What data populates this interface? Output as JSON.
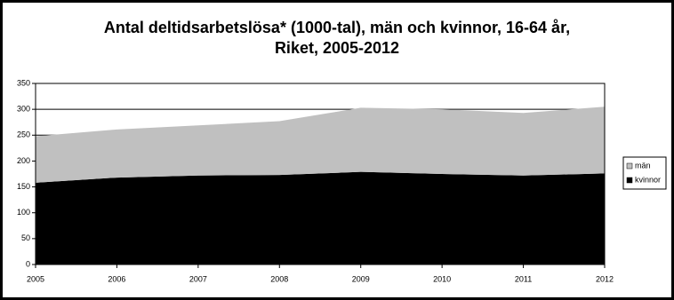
{
  "chart_data": {
    "type": "stacked-area",
    "title": [
      "Antal deltidsarbetslösa* (1000-tal), män och kvinnor, 16-64 år,",
      "Riket, 2005-2012"
    ],
    "categories": [
      "2005",
      "2006",
      "2007",
      "2008",
      "2009",
      "2010",
      "2011",
      "2012"
    ],
    "series": [
      {
        "name": "kvinnor",
        "color": "#000000",
        "values": [
          158,
          168,
          172,
          173,
          179,
          175,
          172,
          176
        ]
      },
      {
        "name": "män",
        "color": "#c0c0c0",
        "values": [
          90,
          93,
          97,
          104,
          124,
          125,
          121,
          129
        ]
      }
    ],
    "ylim": [
      0,
      350
    ],
    "yticks": [
      0,
      50,
      100,
      150,
      200,
      250,
      300,
      350
    ],
    "grid": true,
    "legend": "right"
  }
}
